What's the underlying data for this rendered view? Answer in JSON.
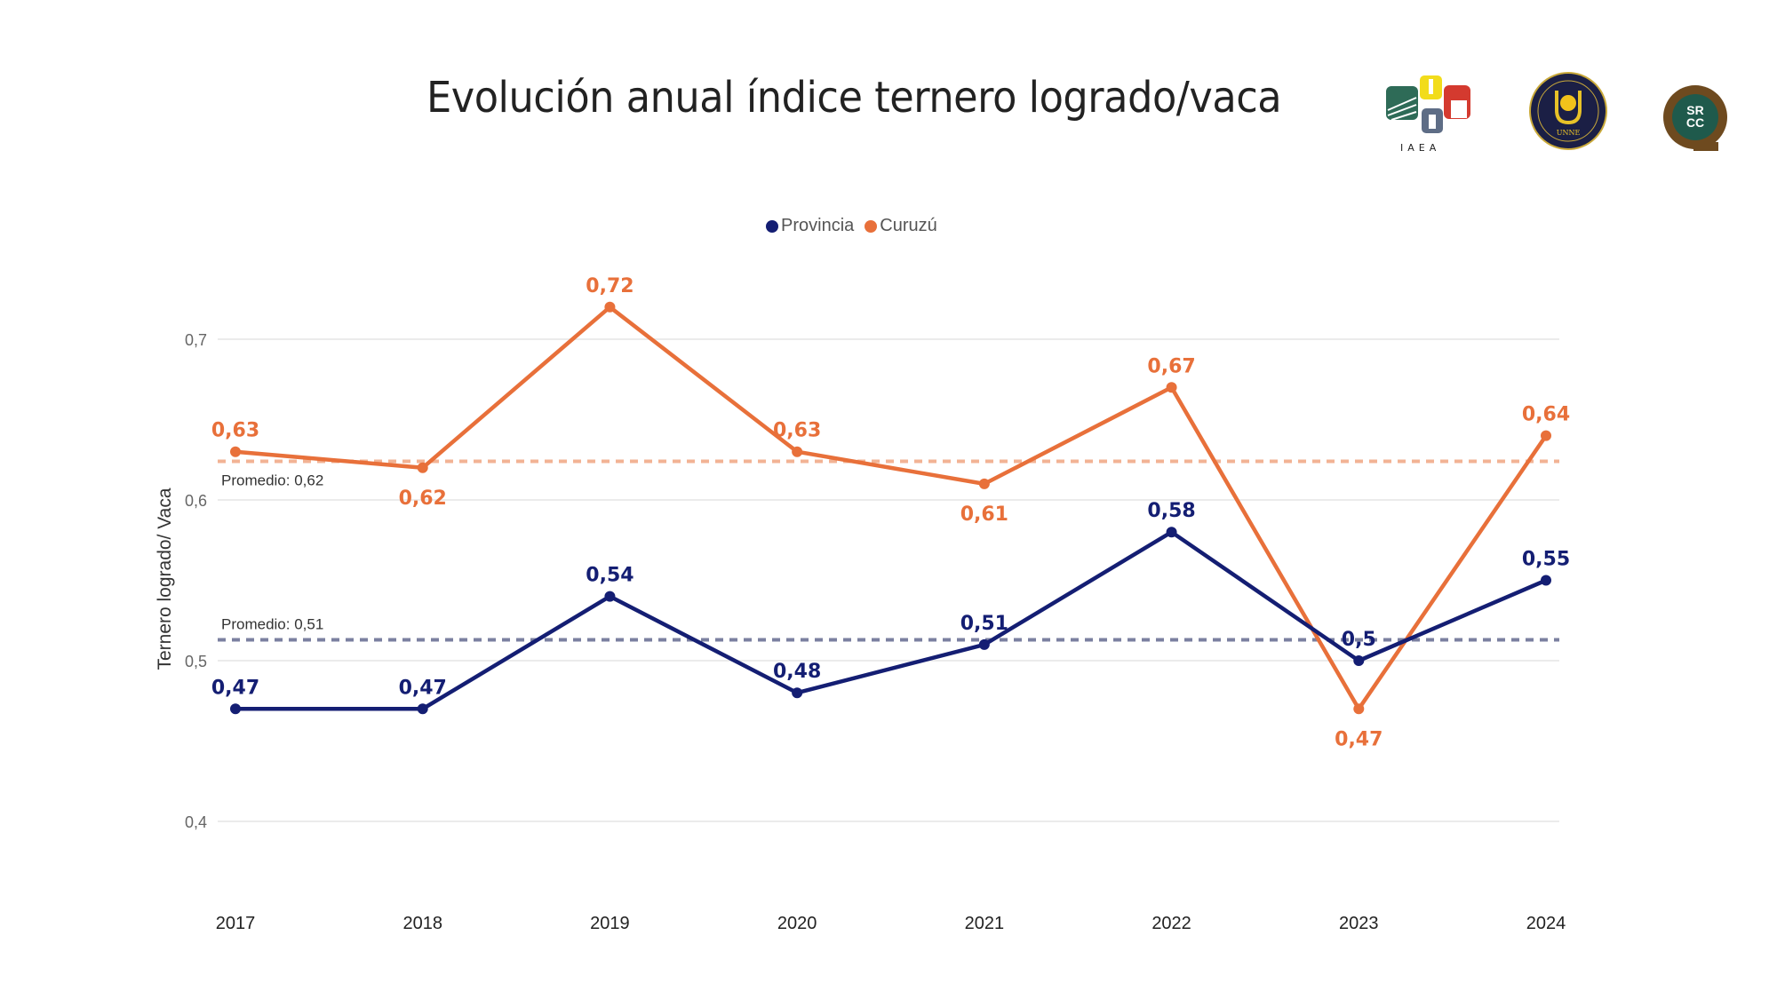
{
  "page": {
    "title": "Evolución anual índice ternero logrado/vaca"
  },
  "logos": [
    {
      "name": "IAEA",
      "label": "IAEA"
    },
    {
      "name": "UNNE",
      "label": "UNNE",
      "ring_text_top": "FACULTAD DE CIENCIAS VETERINARIAS",
      "ring_text_bottom": "CORRIENTES - ARGENTINA"
    },
    {
      "name": "SRCC",
      "label_top": "SR",
      "label_bottom": "CC"
    }
  ],
  "chart_data": {
    "type": "line",
    "title": "Evolución anual índice ternero logrado/vaca",
    "xlabel": "",
    "ylabel": "Ternero logrado/ Vaca",
    "x": [
      "2017",
      "2018",
      "2019",
      "2020",
      "2021",
      "2022",
      "2023",
      "2024"
    ],
    "ylim": [
      0.4,
      0.7
    ],
    "yticks": [
      0.4,
      0.5,
      0.6,
      0.7
    ],
    "ytick_labels": [
      "0,4",
      "0,5",
      "0,6",
      "0,7"
    ],
    "grid": true,
    "legend_position": "top-center",
    "series": [
      {
        "name": "Provincia",
        "color": "#141e73",
        "values": [
          0.47,
          0.47,
          0.54,
          0.48,
          0.51,
          0.58,
          0.5,
          0.55
        ],
        "labels": [
          "0,47",
          "0,47",
          "0,54",
          "0,48",
          "0,51",
          "0,58",
          "0,5",
          "0,55"
        ],
        "label_pos": [
          "above",
          "above",
          "above",
          "above",
          "above",
          "above",
          "above",
          "above"
        ],
        "average": 0.513,
        "average_label": "Promedio: 0,51",
        "average_color": "#7b80a0"
      },
      {
        "name": "Curuzú",
        "color": "#e8703a",
        "values": [
          0.63,
          0.62,
          0.72,
          0.63,
          0.61,
          0.67,
          0.47,
          0.64
        ],
        "labels": [
          "0,63",
          "0,62",
          "0,72",
          "0,63",
          "0,61",
          "0,67",
          "0,47",
          "0,64"
        ],
        "label_pos": [
          "above",
          "below",
          "above",
          "above",
          "below",
          "above",
          "below",
          "above"
        ],
        "average": 0.624,
        "average_label": "Promedio: 0,62",
        "average_color": "#f2b394"
      }
    ]
  }
}
